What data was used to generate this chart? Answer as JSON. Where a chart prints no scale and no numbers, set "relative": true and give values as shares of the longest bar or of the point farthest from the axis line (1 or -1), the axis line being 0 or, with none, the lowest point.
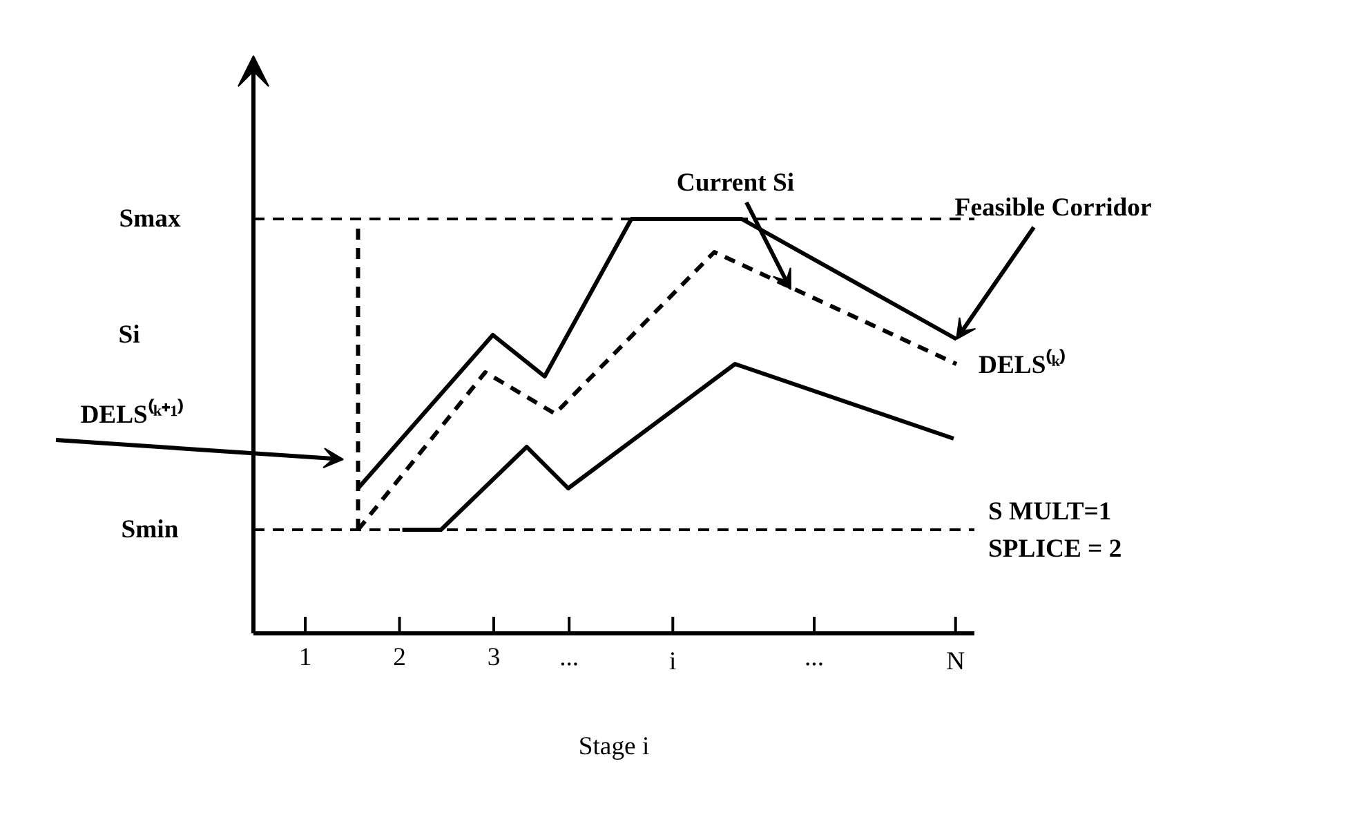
{
  "chart_data": {
    "type": "line",
    "relative": true,
    "ylabel": "Si",
    "xlabel": "Stage i",
    "xlim": [
      0.45,
      8.1
    ],
    "xticks": [
      1,
      2,
      3,
      {
        "value": 3.8,
        "label": "..."
      },
      {
        "value": 4.9,
        "label": "i"
      },
      {
        "value": 6.4,
        "label": "..."
      },
      {
        "value": 7.9,
        "label": "N"
      }
    ],
    "series": [
      {
        "color": "#000000",
        "line_style": "solid",
        "x": [
          1.56,
          2.99,
          3.54,
          4.46,
          5.63,
          7.91
        ],
        "values": [
          0.35,
          0.72,
          0.62,
          1.0,
          1.0,
          0.71
        ]
      },
      {
        "color": "#000000",
        "line_style": "dashed",
        "x": [
          1.56,
          2.91,
          3.65,
          5.34,
          7.91
        ],
        "values": [
          0.25,
          0.63,
          0.53,
          0.92,
          0.65
        ]
      },
      {
        "color": "#000000",
        "line_style": "solid",
        "x": [
          2.03,
          2.44,
          3.35,
          3.79,
          5.56,
          7.88
        ],
        "values": [
          0.25,
          0.25,
          0.45,
          0.35,
          0.65,
          0.47
        ]
      },
      {
        "color": "#000000",
        "line_style": "dashed",
        "x": [
          1.56,
          1.56
        ],
        "values": [
          0.25,
          1.0
        ]
      }
    ],
    "ref_lines": [
      {
        "axis": "y",
        "value": 1.0,
        "label": "Smax",
        "line_style": "dashed"
      },
      {
        "axis": "y",
        "value": 0.25,
        "label": "Smin",
        "line_style": "dashed"
      }
    ],
    "annotations": [
      {
        "text": "Current Si",
        "x": 6.15,
        "y": 0.83
      },
      {
        "text": "Feasible Corridor",
        "x": 7.91,
        "y": 0.71
      },
      "DELS⁽ᵏ⁾",
      "DELS⁽ᵏ⁺¹⁾",
      "S MULT=1",
      "SPLICE = 2"
    ]
  }
}
